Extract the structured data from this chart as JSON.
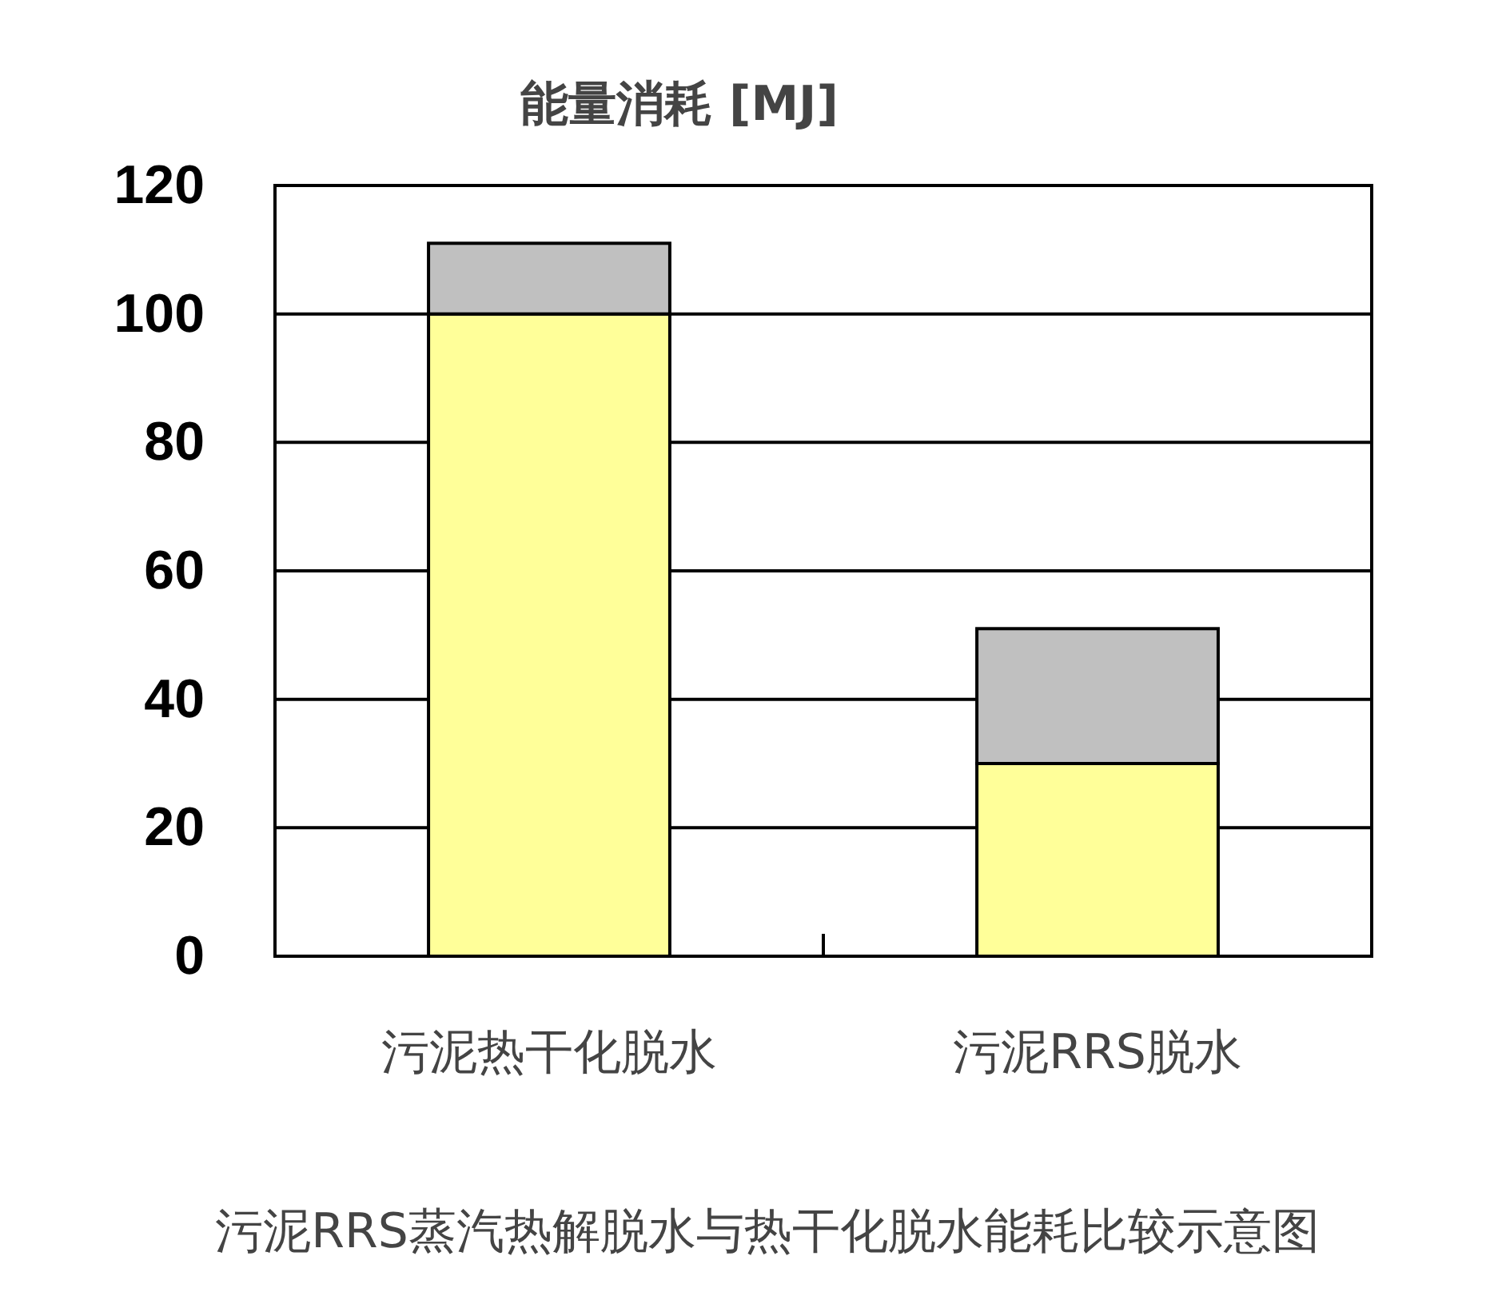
{
  "chart_data": {
    "type": "bar",
    "title": "能量消耗 [MJ]",
    "categories": [
      "污泥热干化脱水",
      "污泥RRS脱水"
    ],
    "stacked": true,
    "series": [
      {
        "color": "#ffff99",
        "values": [
          100,
          30
        ]
      },
      {
        "color": "#c0c0c0",
        "values": [
          11,
          21
        ]
      }
    ],
    "ylim": [
      0,
      120
    ],
    "yticks": [
      0,
      20,
      40,
      60,
      80,
      100,
      120
    ],
    "grid": "y",
    "annotations": [
      "污泥RRS蒸汽热解脱水与热干化脱水能耗比较示意图"
    ]
  }
}
